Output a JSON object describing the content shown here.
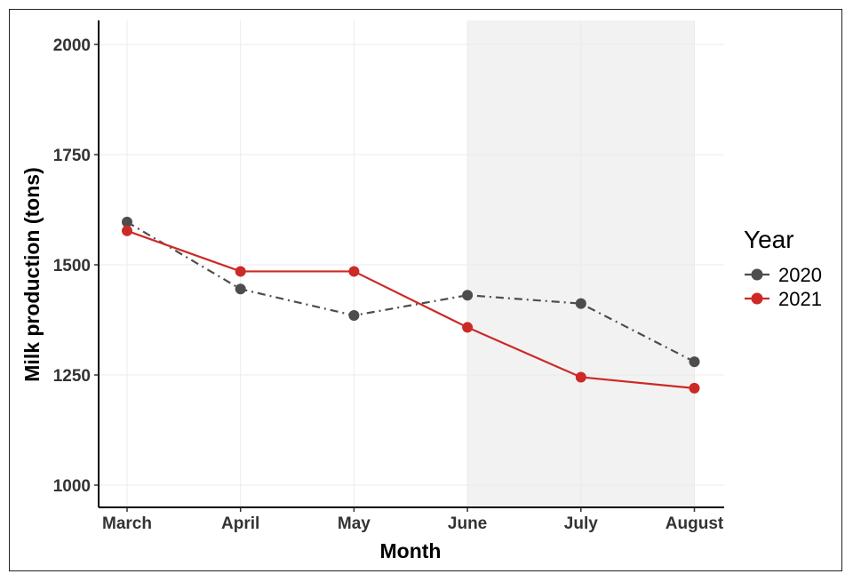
{
  "chart_data": {
    "type": "line",
    "title": "",
    "xlabel": "Month",
    "ylabel": "Milk production (tons)",
    "categories": [
      "March",
      "April",
      "May",
      "June",
      "July",
      "August"
    ],
    "ylim": [
      950,
      2050
    ],
    "yticks": [
      1000,
      1250,
      1500,
      1750,
      2000
    ],
    "grid": true,
    "highlight": {
      "from": "June",
      "to": "August",
      "color": "#f2f2f2"
    },
    "legend": {
      "title": "Year",
      "position": "right"
    },
    "series": [
      {
        "name": "2020",
        "color": "#4d4d4d",
        "dash": "dash-dot",
        "values": [
          1597,
          1445,
          1385,
          1431,
          1412,
          1280
        ]
      },
      {
        "name": "2021",
        "color": "#cc2a26",
        "dash": "solid",
        "values": [
          1577,
          1485,
          1485,
          1358,
          1245,
          1220
        ]
      }
    ]
  }
}
